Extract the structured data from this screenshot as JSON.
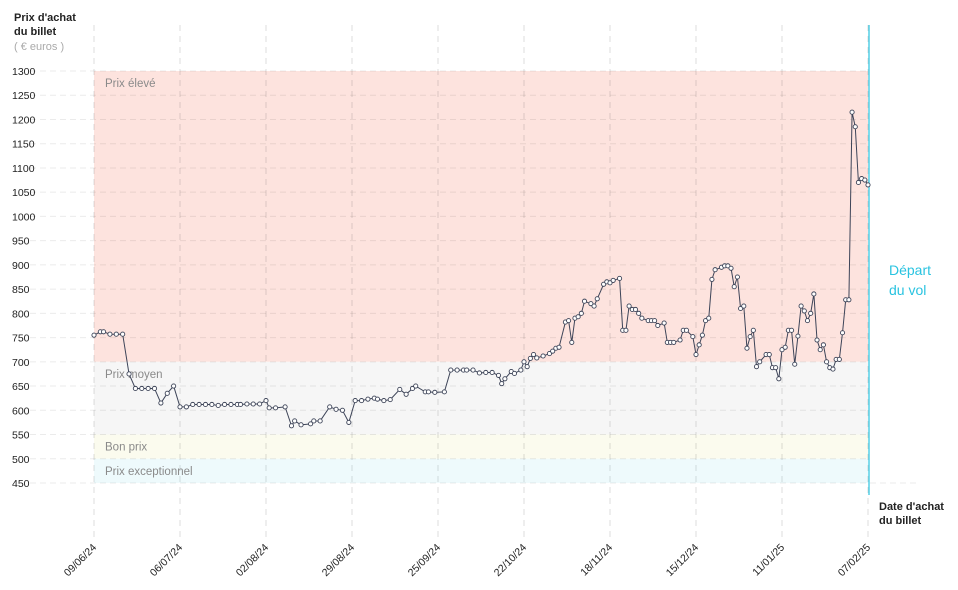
{
  "chart_data": {
    "type": "line",
    "y_label": [
      "Prix d'achat",
      "du billet"
    ],
    "y_unit": "( € euros )",
    "x_label": [
      "Date d'achat",
      "du billet"
    ],
    "annotation": {
      "text": [
        "Départ",
        "du vol"
      ],
      "x": 243,
      "color": "#29c3e0"
    },
    "bands": [
      {
        "label": "Prix élevé",
        "from": 700,
        "to": 1300,
        "color": "#fde3de"
      },
      {
        "label": "Prix moyen",
        "from": 550,
        "to": 700,
        "color": "#f6f6f6"
      },
      {
        "label": "Bon prix",
        "from": 500,
        "to": 550,
        "color": "#fbfbee"
      },
      {
        "label": "Prix exceptionnel",
        "from": 450,
        "to": 500,
        "color": "#eefafc"
      }
    ],
    "ylim": [
      450,
      1300
    ],
    "yticks": [
      450,
      500,
      550,
      600,
      650,
      700,
      750,
      800,
      850,
      900,
      950,
      1000,
      1050,
      1100,
      1150,
      1200,
      1250,
      1300
    ],
    "xlim": [
      0,
      243
    ],
    "xticks": [
      {
        "value": 0,
        "label": "09/06/24"
      },
      {
        "value": 27,
        "label": "06/07/24"
      },
      {
        "value": 54,
        "label": "02/08/24"
      },
      {
        "value": 81,
        "label": "29/08/24"
      },
      {
        "value": 108,
        "label": "25/09/24"
      },
      {
        "value": 135,
        "label": "22/10/24"
      },
      {
        "value": 162,
        "label": "18/11/24"
      },
      {
        "value": 189,
        "label": "15/12/24"
      },
      {
        "value": 216,
        "label": "11/01/25"
      },
      {
        "value": 243,
        "label": "07/02/25"
      }
    ],
    "grid": true,
    "series": [
      {
        "color": "#3d4458",
        "x": [
          0,
          2,
          3,
          5,
          7,
          9,
          11,
          13,
          15,
          17,
          19,
          21,
          23,
          25,
          27,
          29,
          31,
          33,
          35,
          37,
          39,
          41,
          43,
          45,
          46,
          48,
          50,
          52,
          54,
          55,
          57,
          60,
          62,
          63,
          65,
          68,
          69,
          71,
          74,
          76,
          78,
          80,
          82,
          84,
          86,
          88,
          89,
          91,
          93,
          96,
          98,
          100,
          101,
          104,
          105,
          107,
          110,
          112,
          114,
          116,
          117,
          119,
          121,
          123,
          125,
          127,
          128,
          129,
          131,
          132,
          134,
          135,
          136,
          137,
          138,
          139,
          141,
          143,
          144,
          145,
          146,
          148,
          149,
          150,
          151,
          152,
          153,
          154,
          156,
          157,
          158,
          160,
          161,
          162,
          163,
          165,
          166,
          167,
          168,
          169,
          170,
          171,
          172,
          174,
          175,
          176,
          177,
          179,
          180,
          181,
          182,
          184,
          185,
          186,
          188,
          189,
          190,
          191,
          192,
          193,
          194,
          195,
          197,
          198,
          199,
          200,
          201,
          202,
          203,
          204,
          205,
          206,
          207,
          208,
          209,
          211,
          212,
          213,
          214,
          215,
          216,
          217,
          218,
          219,
          220,
          221,
          222,
          223,
          224,
          225,
          226,
          227,
          228,
          229,
          230,
          231,
          232,
          233,
          234,
          235,
          236,
          237,
          238,
          239,
          240,
          241,
          242,
          243
        ],
        "values": [
          755,
          762,
          762,
          757,
          757,
          757,
          675,
          645,
          645,
          645,
          645,
          615,
          635,
          650,
          607,
          607,
          612,
          612,
          612,
          612,
          610,
          612,
          612,
          612,
          612,
          613,
          613,
          613,
          620,
          605,
          605,
          607,
          568,
          578,
          570,
          572,
          578,
          578,
          607,
          602,
          600,
          575,
          620,
          620,
          623,
          625,
          623,
          620,
          622,
          643,
          633,
          645,
          650,
          638,
          638,
          637,
          638,
          683,
          683,
          683,
          683,
          683,
          677,
          678,
          678,
          672,
          655,
          665,
          680,
          676,
          683,
          700,
          690,
          707,
          715,
          708,
          712,
          717,
          722,
          728,
          730,
          782,
          785,
          740,
          790,
          793,
          800,
          825,
          820,
          815,
          830,
          860,
          865,
          863,
          868,
          872,
          765,
          765,
          815,
          808,
          808,
          800,
          790,
          785,
          785,
          785,
          775,
          780,
          740,
          740,
          740,
          745,
          765,
          765,
          752,
          715,
          735,
          755,
          785,
          790,
          870,
          890,
          895,
          898,
          898,
          893,
          855,
          875,
          810,
          815,
          728,
          752,
          765,
          690,
          700,
          715,
          715,
          688,
          688,
          665,
          725,
          730,
          765,
          765,
          695,
          753,
          815,
          805,
          785,
          800,
          840,
          745,
          725,
          735,
          700,
          688,
          685,
          705,
          705,
          760,
          828,
          828,
          1215,
          1185,
          1070,
          1078,
          1075,
          1065
        ]
      }
    ]
  }
}
